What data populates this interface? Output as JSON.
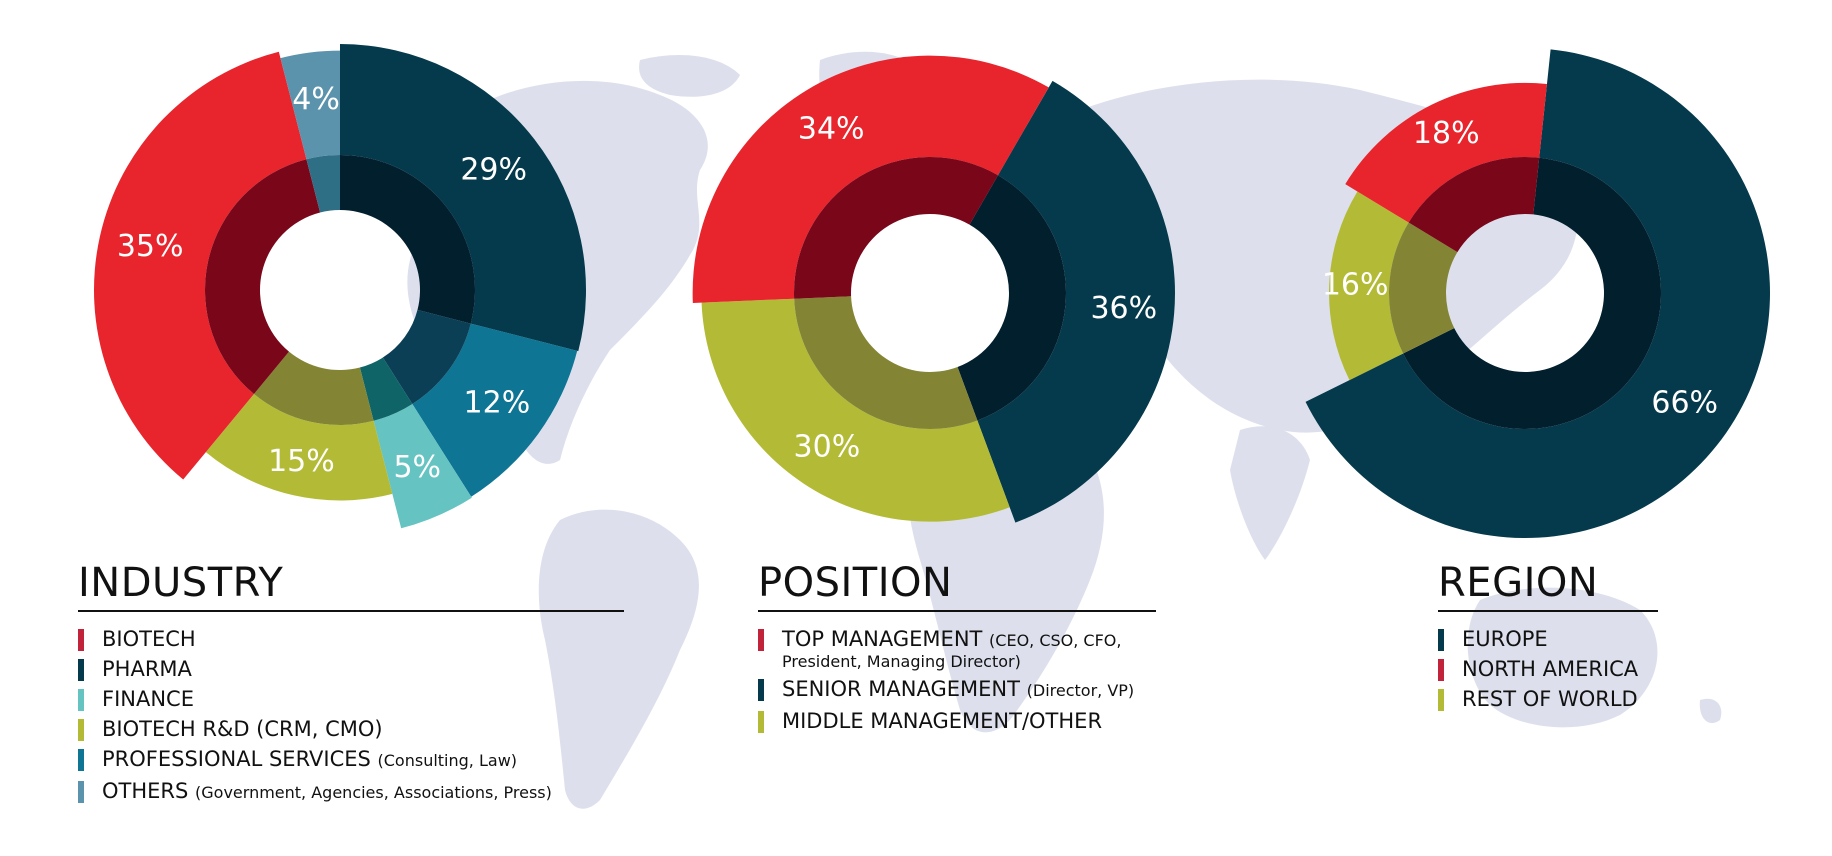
{
  "colors": {
    "red": "#e8242c",
    "red_dark": "#7a0619",
    "teal_dark": "#053a4c",
    "teal_darkest": "#021f2d",
    "olive": "#b3bb36",
    "olive_dark": "#838534",
    "light_teal": "#65c3c1",
    "blue": "#0e7594",
    "slate": "#5b93ad",
    "map": "#dde0ec"
  },
  "background": {
    "icon": "world-map"
  },
  "chart_data": [
    {
      "type": "pie",
      "variant": "polar-area-donut",
      "title": "INDUSTRY",
      "start_angle_deg": 0,
      "slices": [
        {
          "name": "PHARMA",
          "value": 29,
          "label": "29%",
          "color": "#053a4c",
          "inner_color": "#021f2d",
          "radius": 1.0
        },
        {
          "name": "PROFESSIONAL SERVICES",
          "value": 12,
          "label": "12%",
          "color": "#0e7594",
          "inner_color": "#0b3f55",
          "radius": 0.99
        },
        {
          "name": "FINANCE",
          "value": 5,
          "label": "5%",
          "color": "#65c3c1",
          "inner_color": "#0e6467",
          "radius": 1.0
        },
        {
          "name": "BIOTECH R&D",
          "value": 15,
          "label": "15%",
          "color": "#b3bb36",
          "inner_color": "#838534",
          "radius": 0.68
        },
        {
          "name": "BIOTECH",
          "value": 35,
          "label": "35%",
          "color": "#e8242c",
          "inner_color": "#7a0619",
          "radius": 1.0
        },
        {
          "name": "OTHERS",
          "value": 4,
          "label": "4%",
          "color": "#5b93ad",
          "inner_color": "#2f6f85",
          "radius": 0.94
        }
      ]
    },
    {
      "type": "pie",
      "variant": "polar-area-donut",
      "title": "POSITION",
      "start_angle_deg": 30,
      "slices": [
        {
          "name": "SENIOR MANAGEMENT",
          "value": 36,
          "label": "36%",
          "color": "#053a4c",
          "inner_color": "#021f2d",
          "radius": 1.0
        },
        {
          "name": "MIDDLE MANAGEMENT/OTHER",
          "value": 30,
          "label": "30%",
          "color": "#b3bb36",
          "inner_color": "#838534",
          "radius": 0.85
        },
        {
          "name": "TOP MANAGEMENT",
          "value": 34,
          "label": "34%",
          "color": "#e8242c",
          "inner_color": "#7a0619",
          "radius": 0.93
        }
      ]
    },
    {
      "type": "pie",
      "variant": "polar-area-donut",
      "title": "REGION",
      "start_angle_deg": 6,
      "slices": [
        {
          "name": "EUROPE",
          "value": 66,
          "label": "66%",
          "color": "#053a4c",
          "inner_color": "#021f2d",
          "radius": 1.0
        },
        {
          "name": "REST OF WORLD",
          "value": 16,
          "label": "16%",
          "color": "#b3bb36",
          "inner_color": "#838534",
          "radius": 0.55
        },
        {
          "name": "NORTH AMERICA",
          "value": 18,
          "label": "18%",
          "color": "#e8242c",
          "inner_color": "#7a0619",
          "radius": 0.68
        }
      ]
    }
  ],
  "industry": {
    "title": "INDUSTRY",
    "legend": [
      {
        "label": "BIOTECH",
        "sub": "",
        "color": "#c0233a"
      },
      {
        "label": "PHARMA",
        "sub": "",
        "color": "#053a4c"
      },
      {
        "label": "FINANCE",
        "sub": "",
        "color": "#65c3c1"
      },
      {
        "label": "BIOTECH R&D (CRM, CMO)",
        "sub": "",
        "color": "#b3bb36"
      },
      {
        "label": "PROFESSIONAL SERVICES",
        "sub": "(Consulting, Law)",
        "color": "#0e7594"
      },
      {
        "label": "OTHERS",
        "sub": "(Government, Agencies, Associations, Press)",
        "color": "#5b93ad"
      }
    ]
  },
  "position": {
    "title": "POSITION",
    "legend": [
      {
        "label": "TOP MANAGEMENT",
        "sub": "(CEO, CSO, CFO,",
        "note": "President, Managing Director)",
        "color": "#c0233a"
      },
      {
        "label": "SENIOR MANAGEMENT",
        "sub": "(Director, VP)",
        "note": "",
        "color": "#053a4c"
      },
      {
        "label": "MIDDLE MANAGEMENT/OTHER",
        "sub": "",
        "note": "",
        "color": "#b3bb36"
      }
    ]
  },
  "region": {
    "title": "REGION",
    "legend": [
      {
        "label": "EUROPE",
        "color": "#053a4c"
      },
      {
        "label": "NORTH AMERICA",
        "color": "#c0233a"
      },
      {
        "label": "REST OF WORLD",
        "color": "#b3bb36"
      }
    ]
  }
}
